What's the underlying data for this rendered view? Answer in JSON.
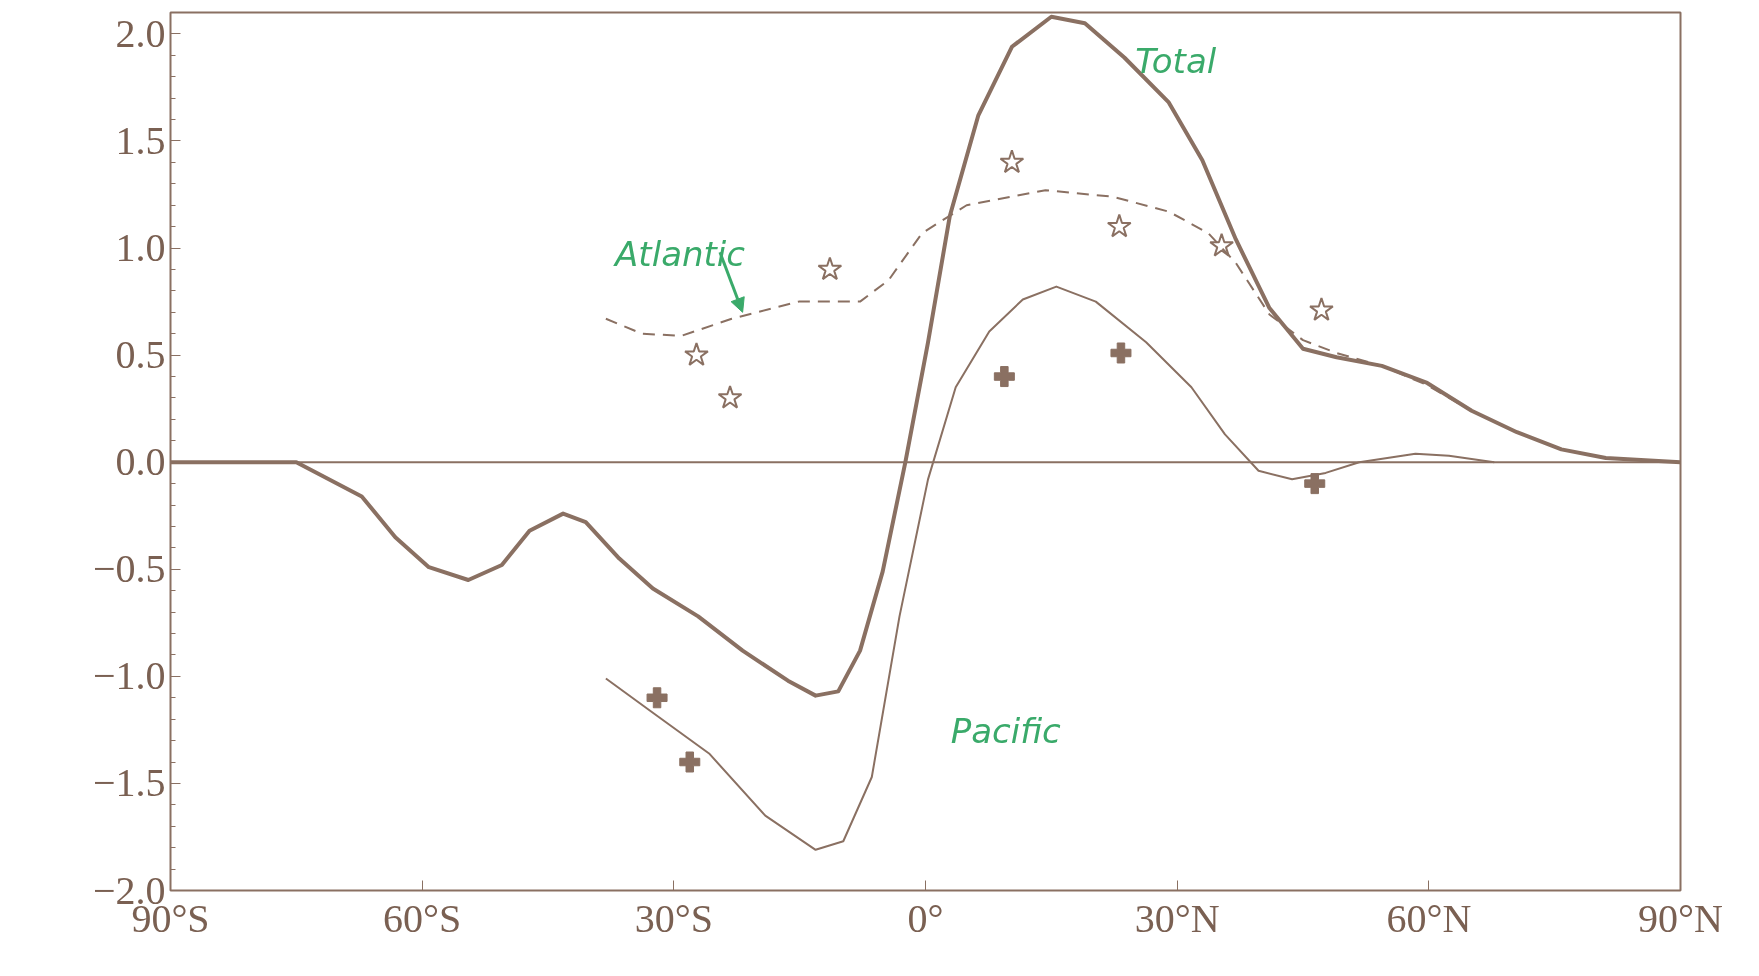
{
  "chart_data": {
    "type": "line",
    "xlim": [
      -90,
      90
    ],
    "ylim": [
      -2.0,
      2.1
    ],
    "xticks": [
      {
        "value": -90,
        "label": "90°S"
      },
      {
        "value": -60,
        "label": "60°S"
      },
      {
        "value": -30,
        "label": "30°S"
      },
      {
        "value": 0,
        "label": "0°"
      },
      {
        "value": 30,
        "label": "30°N"
      },
      {
        "value": 60,
        "label": "60°N"
      },
      {
        "value": 90,
        "label": "90°N"
      }
    ],
    "yticks": [
      {
        "value": -2,
        "label": "−2.0"
      },
      {
        "value": -1.5,
        "label": "−1.5"
      },
      {
        "value": -1,
        "label": "−1.0"
      },
      {
        "value": -0.5,
        "label": "−0.5"
      },
      {
        "value": 0,
        "label": "0.0"
      },
      {
        "value": 0.5,
        "label": "0.5"
      },
      {
        "value": 1,
        "label": "1.0"
      },
      {
        "value": 1.5,
        "label": "1.5"
      },
      {
        "value": 2,
        "label": "2.0"
      }
    ],
    "grid": false,
    "ref_lines": [
      {
        "axis": "y",
        "value": 0,
        "color": "#8a7062"
      }
    ],
    "series": [
      {
        "name": "Total",
        "color": "#8a7062",
        "line_style": "solid",
        "x": [
          -90,
          -75,
          -67.2,
          -63.2,
          -59.2,
          -54.5,
          -50.5,
          -47.2,
          -43.2,
          -40.5,
          -36.5,
          -32.5,
          -27.1,
          -21.8,
          -16.4,
          -13.1,
          -10.4,
          -7.8,
          -5.1,
          -2.4,
          0.3,
          2.9,
          6.3,
          10.3,
          15,
          19,
          23.7,
          29,
          33,
          37,
          41,
          45,
          49,
          54.4,
          59.8,
          65.1,
          70.5,
          75.8,
          81.1,
          90
        ],
        "values": [
          0,
          0,
          -0.16,
          -0.35,
          -0.49,
          -0.55,
          -0.48,
          -0.32,
          -0.24,
          -0.28,
          -0.45,
          -0.59,
          -0.72,
          -0.88,
          -1.02,
          -1.09,
          -1.07,
          -0.88,
          -0.51,
          0,
          0.56,
          1.15,
          1.62,
          1.94,
          2.08,
          2.05,
          1.89,
          1.68,
          1.41,
          1.04,
          0.72,
          0.53,
          0.49,
          0.45,
          0.37,
          0.24,
          0.14,
          0.06,
          0.02,
          0
        ]
      },
      {
        "name": "Atlantic",
        "color": "#8a7062",
        "line_style": "dashed",
        "x": [
          -38.1,
          -33.8,
          -29.1,
          -23.1,
          -15.1,
          -7.8,
          -4.4,
          -0.4,
          4.9,
          14.3,
          22.3,
          29,
          33.7,
          37,
          41,
          45,
          49,
          54.4,
          59.8,
          65.1
        ],
        "values": [
          0.67,
          0.6,
          0.59,
          0.67,
          0.75,
          0.75,
          0.85,
          1.07,
          1.2,
          1.27,
          1.24,
          1.17,
          1.07,
          0.93,
          0.69,
          0.57,
          0.51,
          0.45,
          0.36,
          0.24
        ]
      },
      {
        "name": "Pacific",
        "color": "#8a7062",
        "line_style": "solid",
        "x": [
          -38.1,
          -32.5,
          -25.8,
          -19.1,
          -13.1,
          -9.8,
          -6.4,
          -3.1,
          0.3,
          3.6,
          7.6,
          11.6,
          15.6,
          20.3,
          26.3,
          31.7,
          35.7,
          39.7,
          43.7,
          47.7,
          51.7,
          58.4,
          62.4,
          67.8
        ],
        "values": [
          -1.01,
          -1.17,
          -1.36,
          -1.65,
          -1.81,
          -1.77,
          -1.47,
          -0.72,
          -0.08,
          0.35,
          0.61,
          0.76,
          0.82,
          0.75,
          0.56,
          0.35,
          0.13,
          -0.04,
          -0.08,
          -0.05,
          0,
          0.04,
          0.03,
          0
        ]
      },
      {
        "type": "scatter",
        "marker": "star",
        "color": "#8a7062",
        "x": [
          -27.3,
          -23.3,
          -11.4,
          10.3,
          23.1,
          35.3,
          47.2
        ],
        "values": [
          0.5,
          0.3,
          0.9,
          1.4,
          1.1,
          1.01,
          0.71
        ]
      },
      {
        "type": "scatter",
        "marker": "cross",
        "color": "#8a7062",
        "x": [
          -32,
          -28.1,
          9.4,
          23.3,
          46.4
        ],
        "values": [
          -1.1,
          -1.4,
          0.4,
          0.51,
          -0.1
        ]
      }
    ]
  }
}
